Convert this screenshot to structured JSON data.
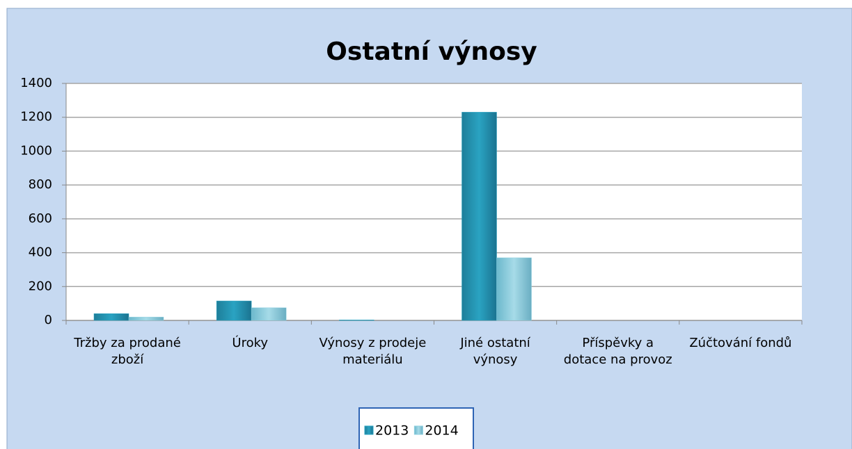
{
  "chart_data": {
    "type": "bar",
    "title": "Ostatní výnosy",
    "categories": [
      "Tržby za prodané zboží",
      "Úroky",
      "Výnosy z prodeje materiálu",
      "Jiné ostatní výnosy",
      "Příspěvky a dotace na provoz",
      "Zúčtování fondů"
    ],
    "series": [
      {
        "name": "2013",
        "color": "#2aa3c2",
        "values": [
          40,
          115,
          3,
          1230,
          0,
          0
        ]
      },
      {
        "name": "2014",
        "color": "#8fd0e0",
        "values": [
          20,
          75,
          0,
          370,
          0,
          0
        ]
      }
    ],
    "ylim": [
      0,
      1400
    ],
    "yticks": [
      0,
      200,
      400,
      600,
      800,
      1000,
      1200,
      1400
    ],
    "grid": true,
    "legend": "bottom"
  }
}
